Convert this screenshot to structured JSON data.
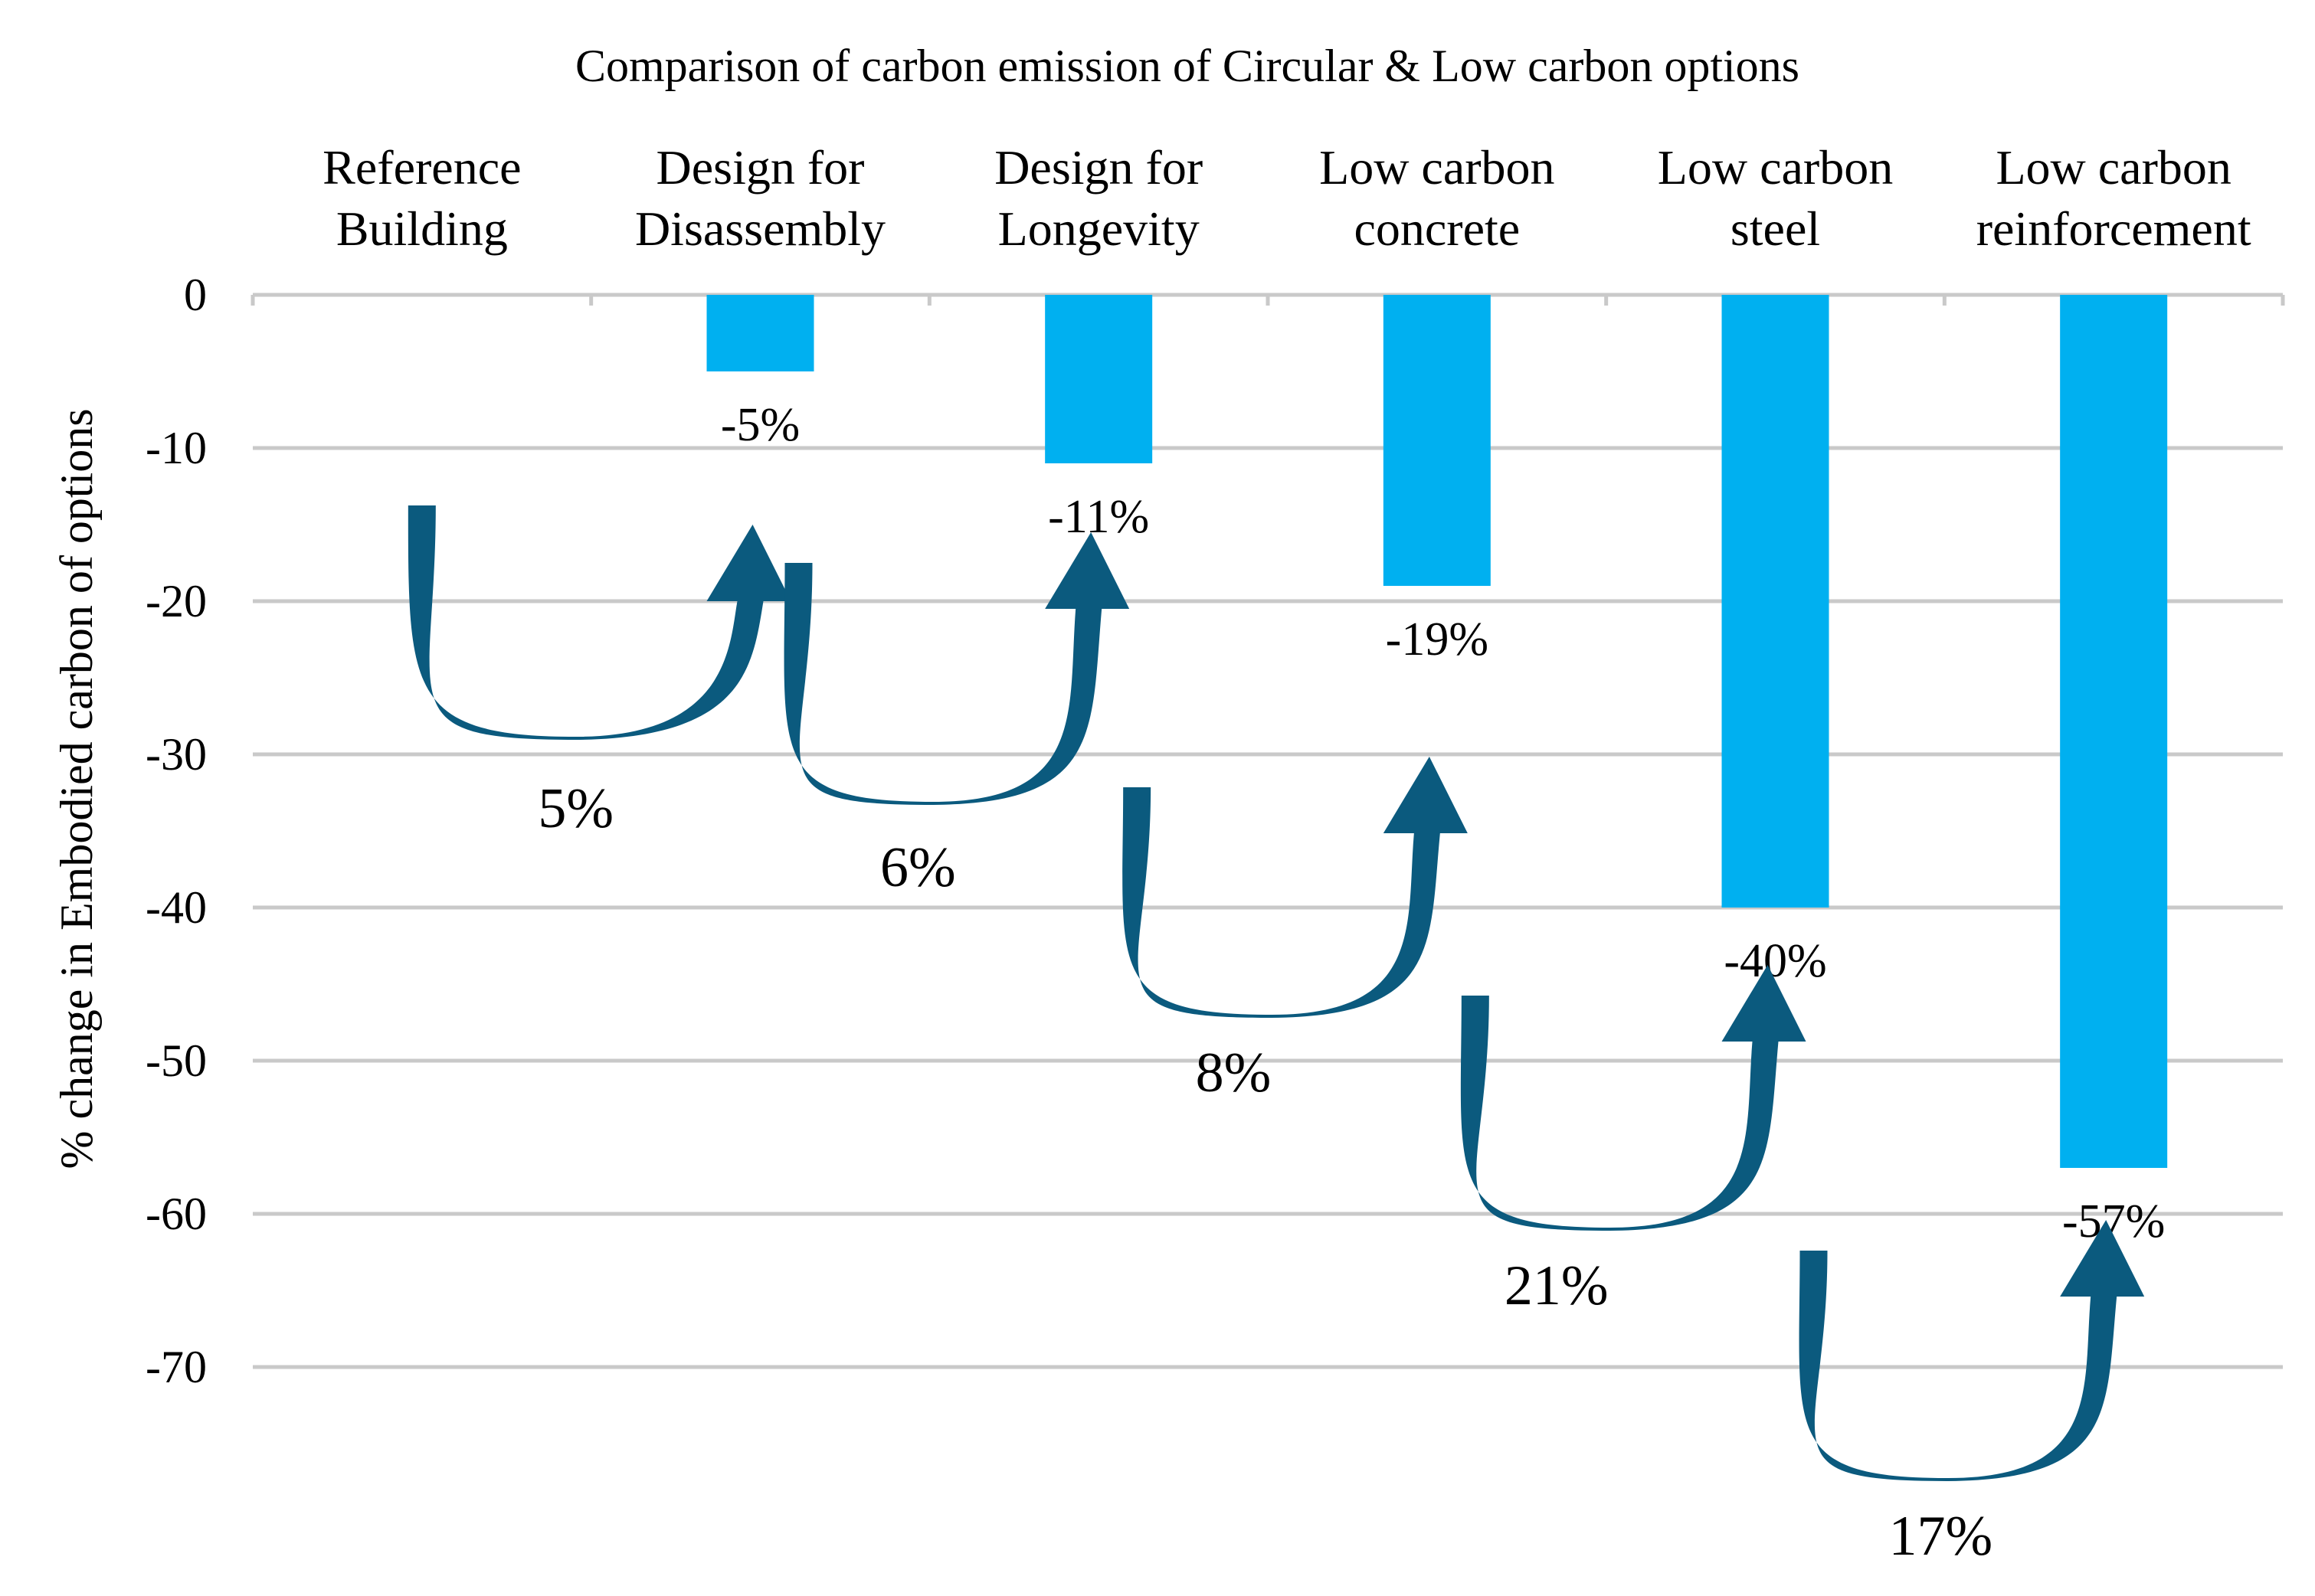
{
  "chart_data": {
    "type": "bar",
    "title": "Comparison of carbon emission of Circular & Low carbon options",
    "ylabel": "% change in Embodied carbon of options",
    "xlabel": "",
    "ylim": [
      -70,
      0
    ],
    "yticks": [
      0,
      -10,
      -20,
      -30,
      -40,
      -50,
      -60,
      -70
    ],
    "categories": [
      [
        "Reference",
        "Building"
      ],
      [
        "Design for",
        "Disassembly"
      ],
      [
        "Design for",
        "Longevity"
      ],
      [
        "Low carbon",
        "concrete"
      ],
      [
        "Low carbon",
        "steel"
      ],
      [
        "Low carbon",
        "reinforcement"
      ]
    ],
    "values": [
      0,
      -5,
      -11,
      -19,
      -40,
      -57
    ],
    "data_labels": [
      "",
      "-5%",
      "-11%",
      "-19%",
      "-40%",
      "-57%"
    ],
    "bar_color": "#00b0f0",
    "arrow_color": "#0b5a7e",
    "arrows": [
      {
        "from_category": 0,
        "to_category": 1,
        "label": "5%"
      },
      {
        "from_category": 1,
        "to_category": 2,
        "label": "6%"
      },
      {
        "from_category": 2,
        "to_category": 3,
        "label": "8%"
      },
      {
        "from_category": 3,
        "to_category": 4,
        "label": "21%"
      },
      {
        "from_category": 4,
        "to_category": 5,
        "label": "17%"
      }
    ],
    "grid": true,
    "legend": "none"
  }
}
